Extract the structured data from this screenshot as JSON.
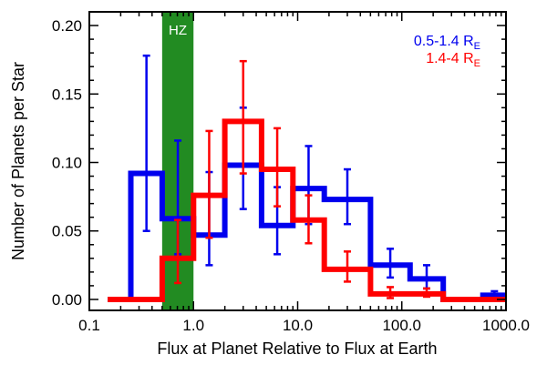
{
  "chart_data": {
    "type": "histogram",
    "xlabel": "Flux at Planet Relative to Flux at Earth",
    "ylabel": "Number of Planets per Star",
    "x_scale": "log",
    "xlim": [
      0.1,
      1000.0
    ],
    "ylim": [
      -0.008,
      0.21
    ],
    "x_ticks": [
      {
        "value": 0.1,
        "label": "0.1"
      },
      {
        "value": 1.0,
        "label": "1.0"
      },
      {
        "value": 10.0,
        "label": "10.0"
      },
      {
        "value": 100.0,
        "label": "100.0"
      },
      {
        "value": 1000.0,
        "label": "1000.0"
      }
    ],
    "y_ticks": [
      {
        "value": 0.0,
        "label": "0.00"
      },
      {
        "value": 0.05,
        "label": "0.05"
      },
      {
        "value": 0.1,
        "label": "0.10"
      },
      {
        "value": 0.15,
        "label": "0.15"
      },
      {
        "value": 0.2,
        "label": "0.20"
      }
    ],
    "hz_band": {
      "x_start": 0.5,
      "x_end": 1.0,
      "label": "HZ",
      "color": "#228b22"
    },
    "series": [
      {
        "legend_main": "0.5-1.4 R",
        "legend_sub": "E",
        "color": "#0000ee",
        "bins": [
          {
            "x0": 0.15,
            "x1": 0.25,
            "y": 0.0,
            "err": null
          },
          {
            "x0": 0.25,
            "x1": 0.5,
            "y": 0.092,
            "err": [
              0.05,
              0.178
            ]
          },
          {
            "x0": 0.5,
            "x1": 1.0,
            "y": 0.059,
            "err": [
              0.033,
              0.116
            ]
          },
          {
            "x0": 1.0,
            "x1": 2.0,
            "y": 0.047,
            "err": [
              0.025,
              0.093
            ]
          },
          {
            "x0": 2.0,
            "x1": 4.5,
            "y": 0.098,
            "err": [
              0.066,
              0.14
            ]
          },
          {
            "x0": 4.5,
            "x1": 9.0,
            "y": 0.054,
            "err": [
              0.033,
              0.082
            ]
          },
          {
            "x0": 9.0,
            "x1": 18.0,
            "y": 0.081,
            "err": [
              0.055,
              0.112
            ]
          },
          {
            "x0": 18.0,
            "x1": 50.0,
            "y": 0.073,
            "err": [
              0.055,
              0.095
            ]
          },
          {
            "x0": 50.0,
            "x1": 120.0,
            "y": 0.025,
            "err": [
              0.016,
              0.037
            ]
          },
          {
            "x0": 120.0,
            "x1": 250.0,
            "y": 0.015,
            "err": [
              0.008,
              0.025
            ]
          },
          {
            "x0": 250.0,
            "x1": 600.0,
            "y": 0.0,
            "err": null
          },
          {
            "x0": 600.0,
            "x1": 1000.0,
            "y": 0.003,
            "err": [
              0.001,
              0.006
            ]
          }
        ]
      },
      {
        "legend_main": "1.4-4 R",
        "legend_sub": "E",
        "color": "#ff0000",
        "bins": [
          {
            "x0": 0.15,
            "x1": 0.5,
            "y": 0.0,
            "err": null
          },
          {
            "x0": 0.5,
            "x1": 1.0,
            "y": 0.03,
            "err": [
              0.012,
              0.058
            ]
          },
          {
            "x0": 1.0,
            "x1": 2.0,
            "y": 0.076,
            "err": [
              0.045,
              0.123
            ]
          },
          {
            "x0": 2.0,
            "x1": 4.5,
            "y": 0.13,
            "err": [
              0.092,
              0.174
            ]
          },
          {
            "x0": 4.5,
            "x1": 9.0,
            "y": 0.095,
            "err": [
              0.068,
              0.125
            ]
          },
          {
            "x0": 9.0,
            "x1": 18.0,
            "y": 0.058,
            "err": [
              0.041,
              0.076
            ]
          },
          {
            "x0": 18.0,
            "x1": 50.0,
            "y": 0.022,
            "err": [
              0.013,
              0.035
            ]
          },
          {
            "x0": 50.0,
            "x1": 120.0,
            "y": 0.004,
            "err": [
              0.001,
              0.009
            ]
          },
          {
            "x0": 120.0,
            "x1": 250.0,
            "y": 0.004,
            "err": [
              0.002,
              0.008
            ]
          },
          {
            "x0": 250.0,
            "x1": 1000.0,
            "y": 0.0,
            "err": null
          }
        ]
      }
    ],
    "grid": false,
    "legend_position": "top-right"
  }
}
